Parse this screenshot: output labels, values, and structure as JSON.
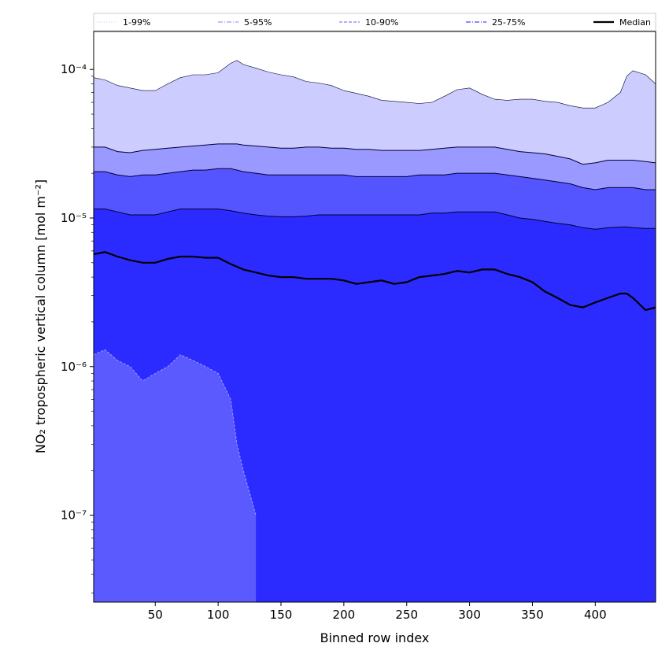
{
  "chart_data": {
    "type": "area",
    "title": "",
    "xlabel": "Binned row index",
    "ylabel": "NO₂ tropospheric vertical column [mol m⁻²]",
    "xlim": [
      1,
      448
    ],
    "ylim": [
      2.6e-08,
      0.00018
    ],
    "yscale": "log",
    "grid": false,
    "legend_position": "top",
    "x_ticks": [
      50,
      100,
      150,
      200,
      250,
      300,
      350,
      400
    ],
    "x_tick_labels": [
      "50",
      "100",
      "150",
      "200",
      "250",
      "300",
      "350",
      "400"
    ],
    "y_ticks": [
      1e-07,
      1e-06,
      1e-05,
      0.0001
    ],
    "y_tick_labels": [
      "10⁻⁷",
      "10⁻⁶",
      "10⁻⁵",
      "10⁻⁴"
    ],
    "x": [
      1,
      10,
      20,
      30,
      40,
      50,
      60,
      70,
      80,
      90,
      100,
      110,
      115,
      120,
      130,
      140,
      150,
      160,
      170,
      180,
      190,
      200,
      210,
      220,
      230,
      240,
      250,
      260,
      270,
      280,
      290,
      300,
      310,
      320,
      330,
      340,
      350,
      360,
      370,
      380,
      390,
      400,
      410,
      420,
      425,
      430,
      440,
      448
    ],
    "bands": [
      {
        "name": "1-99%",
        "color": "#ccccff",
        "lower": [
          1.2e-06,
          1.3e-06,
          1.1e-06,
          1e-06,
          8e-07,
          9e-07,
          1e-06,
          1.2e-06,
          1.1e-06,
          1e-06,
          9e-07,
          6e-07,
          3e-07,
          2e-07,
          1e-07,
          null,
          null,
          null,
          null,
          null,
          null,
          null,
          null,
          null,
          null,
          null,
          null,
          null,
          null,
          null,
          null,
          null,
          null,
          null,
          null,
          null,
          null,
          null,
          null,
          null,
          null,
          null,
          null,
          null,
          null,
          null,
          null,
          null
        ],
        "upper": [
          8.8e-05,
          8.5e-05,
          7.8e-05,
          7.5e-05,
          7.2e-05,
          7.2e-05,
          8e-05,
          8.8e-05,
          9.2e-05,
          9.2e-05,
          9.5e-05,
          0.00011,
          0.000115,
          0.000108,
          0.000102,
          9.6e-05,
          9.2e-05,
          8.9e-05,
          8.3e-05,
          8.1e-05,
          7.8e-05,
          7.2e-05,
          6.9e-05,
          6.6e-05,
          6.2e-05,
          6.1e-05,
          6e-05,
          5.9e-05,
          6e-05,
          6.6e-05,
          7.3e-05,
          7.5e-05,
          6.8e-05,
          6.3e-05,
          6.2e-05,
          6.3e-05,
          6.3e-05,
          6.1e-05,
          6e-05,
          5.7e-05,
          5.5e-05,
          5.5e-05,
          6e-05,
          7e-05,
          9e-05,
          9.8e-05,
          9.2e-05,
          8e-05
        ]
      },
      {
        "name": "5-95%",
        "color": "#9999ff",
        "lower": [
          null,
          null,
          null,
          null,
          null,
          null,
          null,
          null,
          null,
          null,
          null,
          null,
          null,
          null,
          null,
          null,
          null,
          null,
          null,
          null,
          null,
          null,
          null,
          null,
          null,
          null,
          null,
          null,
          null,
          null,
          null,
          null,
          null,
          null,
          null,
          null,
          null,
          null,
          null,
          null,
          null,
          null,
          null,
          null,
          null,
          null,
          null,
          null
        ],
        "upper": [
          3e-05,
          3e-05,
          2.8e-05,
          2.75e-05,
          2.85e-05,
          2.9e-05,
          2.95e-05,
          3e-05,
          3.05e-05,
          3.1e-05,
          3.15e-05,
          3.15e-05,
          3.15e-05,
          3.1e-05,
          3.05e-05,
          3e-05,
          2.95e-05,
          2.95e-05,
          3e-05,
          3e-05,
          2.95e-05,
          2.95e-05,
          2.9e-05,
          2.9e-05,
          2.85e-05,
          2.85e-05,
          2.85e-05,
          2.85e-05,
          2.9e-05,
          2.95e-05,
          3e-05,
          3e-05,
          3e-05,
          3e-05,
          2.9e-05,
          2.8e-05,
          2.75e-05,
          2.7e-05,
          2.6e-05,
          2.5e-05,
          2.3e-05,
          2.35e-05,
          2.45e-05,
          2.45e-05,
          2.45e-05,
          2.45e-05,
          2.4e-05,
          2.35e-05
        ]
      },
      {
        "name": "10-90%",
        "color": "#5555ff",
        "lower": [
          null,
          null,
          null,
          null,
          null,
          null,
          null,
          null,
          null,
          null,
          null,
          null,
          null,
          null,
          null,
          null,
          null,
          null,
          null,
          null,
          null,
          null,
          null,
          null,
          null,
          null,
          null,
          null,
          null,
          null,
          null,
          null,
          null,
          null,
          null,
          null,
          null,
          null,
          null,
          null,
          null,
          null,
          null,
          null,
          null,
          null,
          null,
          null
        ],
        "upper": [
          2.05e-05,
          2.05e-05,
          1.95e-05,
          1.9e-05,
          1.95e-05,
          1.95e-05,
          2e-05,
          2.05e-05,
          2.1e-05,
          2.1e-05,
          2.15e-05,
          2.15e-05,
          2.1e-05,
          2.05e-05,
          2e-05,
          1.95e-05,
          1.95e-05,
          1.95e-05,
          1.95e-05,
          1.95e-05,
          1.95e-05,
          1.95e-05,
          1.9e-05,
          1.9e-05,
          1.9e-05,
          1.9e-05,
          1.9e-05,
          1.95e-05,
          1.95e-05,
          1.95e-05,
          2e-05,
          2e-05,
          2e-05,
          2e-05,
          1.95e-05,
          1.9e-05,
          1.85e-05,
          1.8e-05,
          1.75e-05,
          1.7e-05,
          1.6e-05,
          1.55e-05,
          1.6e-05,
          1.6e-05,
          1.6e-05,
          1.6e-05,
          1.55e-05,
          1.55e-05
        ]
      },
      {
        "name": "25-75%",
        "color": "#2b2bff",
        "lower": [
          null,
          null,
          null,
          null,
          null,
          null,
          null,
          null,
          null,
          null,
          null,
          null,
          null,
          null,
          null,
          null,
          null,
          null,
          null,
          null,
          null,
          null,
          null,
          null,
          null,
          null,
          null,
          null,
          null,
          null,
          null,
          null,
          null,
          null,
          null,
          null,
          null,
          null,
          null,
          null,
          null,
          null,
          null,
          null,
          null,
          null,
          null,
          null
        ],
        "upper": [
          1.15e-05,
          1.15e-05,
          1.1e-05,
          1.05e-05,
          1.05e-05,
          1.05e-05,
          1.1e-05,
          1.15e-05,
          1.15e-05,
          1.15e-05,
          1.15e-05,
          1.12e-05,
          1.1e-05,
          1.08e-05,
          1.05e-05,
          1.03e-05,
          1.02e-05,
          1.02e-05,
          1.03e-05,
          1.05e-05,
          1.05e-05,
          1.05e-05,
          1.05e-05,
          1.05e-05,
          1.05e-05,
          1.05e-05,
          1.05e-05,
          1.05e-05,
          1.08e-05,
          1.08e-05,
          1.1e-05,
          1.1e-05,
          1.1e-05,
          1.1e-05,
          1.05e-05,
          1e-05,
          9.8e-06,
          9.5e-06,
          9.2e-06,
          9e-06,
          8.6e-06,
          8.4e-06,
          8.6e-06,
          8.7e-06,
          8.7e-06,
          8.6e-06,
          8.5e-06,
          8.5e-06
        ]
      }
    ],
    "median": {
      "name": "Median",
      "color": "#000000",
      "values": [
        5.7e-06,
        5.9e-06,
        5.5e-06,
        5.2e-06,
        5e-06,
        5e-06,
        5.3e-06,
        5.5e-06,
        5.5e-06,
        5.4e-06,
        5.4e-06,
        4.9e-06,
        4.7e-06,
        4.5e-06,
        4.3e-06,
        4.1e-06,
        4e-06,
        4e-06,
        3.9e-06,
        3.9e-06,
        3.9e-06,
        3.8e-06,
        3.6e-06,
        3.7e-06,
        3.8e-06,
        3.6e-06,
        3.7e-06,
        4e-06,
        4.1e-06,
        4.2e-06,
        4.4e-06,
        4.3e-06,
        4.5e-06,
        4.5e-06,
        4.2e-06,
        4e-06,
        3.7e-06,
        3.2e-06,
        2.9e-06,
        2.6e-06,
        2.5e-06,
        2.7e-06,
        2.9e-06,
        3.1e-06,
        3.1e-06,
        2.9e-06,
        2.4e-06,
        2.5e-06
      ]
    },
    "legend": [
      {
        "label": "1-99%",
        "style": "dotted",
        "color": "#ccccff"
      },
      {
        "label": "5-95%",
        "style": "dashdot",
        "color": "#9999ff"
      },
      {
        "label": "10-90%",
        "style": "dashed",
        "color": "#8080ff"
      },
      {
        "label": "25-75%",
        "style": "dashdot",
        "color": "#4444ff"
      },
      {
        "label": "Median",
        "style": "solid",
        "color": "#000000"
      }
    ]
  }
}
